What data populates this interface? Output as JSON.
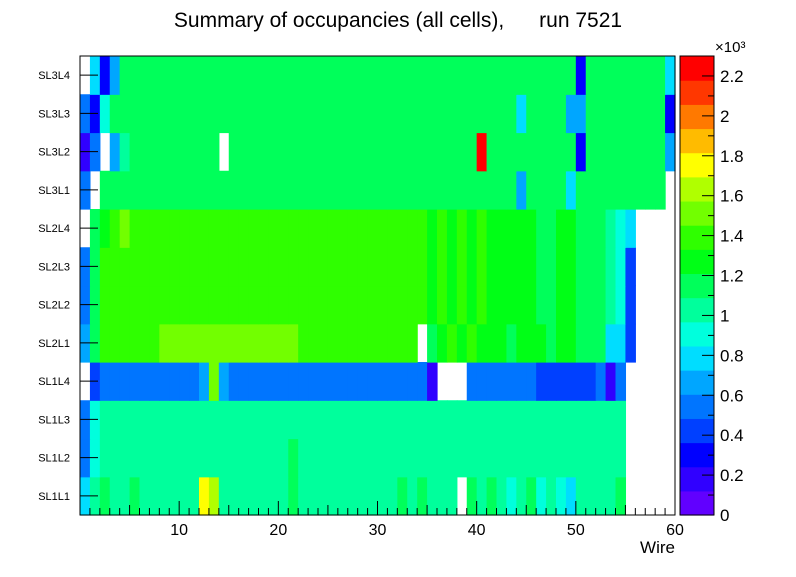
{
  "chart_data": {
    "type": "heatmap",
    "title": "Summary of occupancies (all cells),      run 7521",
    "xlabel": "Wire",
    "ylabel": "",
    "xlim": [
      0,
      60
    ],
    "x_ticks": [
      10,
      20,
      30,
      40,
      50,
      60
    ],
    "rows": [
      "SL1L1",
      "SL1L2",
      "SL1L3",
      "SL1L4",
      "SL2L1",
      "SL2L2",
      "SL2L3",
      "SL2L4",
      "SL3L1",
      "SL3L2",
      "SL3L3",
      "SL3L4"
    ],
    "color_scale": {
      "min": 0,
      "max": 2.3,
      "exponent_label": "×10³",
      "tick_values": [
        0,
        0.2,
        0.4,
        0.6,
        0.8,
        1,
        1.2,
        1.4,
        1.6,
        1.8,
        2,
        2.2
      ],
      "tick_labels": [
        "0",
        "0.2",
        "0.4",
        "0.6",
        "0.8",
        "1",
        "1.2",
        "1.4",
        "1.6",
        "1.8",
        "2",
        "2.2"
      ],
      "palette": [
        "#6100ff",
        "#3000ff",
        "#0000ff",
        "#0040ff",
        "#0075ff",
        "#00a6ff",
        "#00ddff",
        "#00ffdd",
        "#00ff9c",
        "#00ff5a",
        "#00ff16",
        "#2fff00",
        "#72ff00",
        "#b0ff00",
        "#ffff00",
        "#ffbb00",
        "#ff7900",
        "#ff3700",
        "#ff0000"
      ]
    },
    "values_unit": "hits ×10³",
    "values": [
      [
        0.8,
        1.0,
        1.1,
        1.0,
        1.0,
        1.1,
        1.0,
        1.0,
        1.0,
        1.0,
        1.0,
        1.0,
        1.8,
        1.6,
        1.0,
        1.0,
        1.0,
        1.0,
        1.0,
        1.0,
        1.0,
        1.1,
        1.0,
        1.0,
        1.0,
        1.0,
        1.0,
        1.0,
        1.0,
        1.0,
        1.0,
        1.0,
        1.1,
        1.0,
        1.1,
        1.0,
        1.0,
        1.0,
        null,
        1.1,
        1.0,
        1.1,
        1.0,
        0.9,
        1.0,
        1.1,
        0.9,
        1.0,
        0.9,
        0.8,
        1.0,
        1.0,
        1.0,
        1.0,
        1.1,
        null,
        null,
        null,
        null,
        null
      ],
      [
        0.6,
        0.9,
        1.0,
        1.0,
        1.0,
        1.0,
        1.0,
        1.0,
        1.0,
        1.0,
        1.0,
        1.0,
        1.0,
        1.0,
        1.0,
        1.0,
        1.0,
        1.0,
        1.0,
        1.0,
        1.0,
        1.1,
        1.0,
        1.0,
        1.0,
        1.0,
        1.0,
        1.0,
        1.0,
        1.0,
        1.0,
        1.0,
        1.0,
        1.0,
        1.0,
        1.0,
        1.0,
        1.0,
        1.0,
        1.0,
        1.0,
        1.0,
        1.0,
        1.0,
        1.0,
        1.0,
        1.0,
        1.0,
        1.0,
        1.0,
        1.0,
        1.0,
        1.0,
        1.0,
        1.0,
        null,
        null,
        null,
        null,
        null
      ],
      [
        0.6,
        0.9,
        1.0,
        1.0,
        1.0,
        1.0,
        1.0,
        1.0,
        1.0,
        1.0,
        1.0,
        1.0,
        1.0,
        1.0,
        1.0,
        1.0,
        1.0,
        1.0,
        1.0,
        1.0,
        1.0,
        1.0,
        1.0,
        1.0,
        1.0,
        1.0,
        1.0,
        1.0,
        1.0,
        1.0,
        1.0,
        1.0,
        1.0,
        1.0,
        1.0,
        1.0,
        1.0,
        1.0,
        1.0,
        1.0,
        1.0,
        1.0,
        1.0,
        1.0,
        1.0,
        1.0,
        1.0,
        1.0,
        1.0,
        1.0,
        1.0,
        1.0,
        1.0,
        1.0,
        1.0,
        null,
        null,
        null,
        null,
        null
      ],
      [
        null,
        0.4,
        0.5,
        0.5,
        0.5,
        0.5,
        0.5,
        0.5,
        0.6,
        0.6,
        0.5,
        0.6,
        0.7,
        1.5,
        0.7,
        0.6,
        0.5,
        0.5,
        0.6,
        0.5,
        0.6,
        0.5,
        0.5,
        0.5,
        0.5,
        0.5,
        0.5,
        0.5,
        0.5,
        0.5,
        0.5,
        0.5,
        0.6,
        0.6,
        0.6,
        0.2,
        null,
        null,
        null,
        0.5,
        0.5,
        0.5,
        0.5,
        0.5,
        0.5,
        0.6,
        0.4,
        0.4,
        0.4,
        0.4,
        0.4,
        0.4,
        0.5,
        0.2,
        0.5,
        null,
        null,
        null,
        null,
        null
      ],
      [
        0.7,
        1.2,
        1.4,
        1.4,
        1.4,
        1.4,
        1.4,
        1.4,
        1.5,
        1.5,
        1.5,
        1.5,
        1.5,
        1.5,
        1.5,
        1.5,
        1.5,
        1.5,
        1.5,
        1.5,
        1.5,
        1.5,
        1.4,
        1.4,
        1.4,
        1.4,
        1.4,
        1.4,
        1.4,
        1.4,
        1.4,
        1.4,
        1.4,
        1.4,
        null,
        1.2,
        1.3,
        1.4,
        1.3,
        1.4,
        1.3,
        1.3,
        1.3,
        1.2,
        1.3,
        1.3,
        1.3,
        1.2,
        1.3,
        1.3,
        1.2,
        1.1,
        1.1,
        0.8,
        0.8,
        0.4,
        null,
        null,
        null,
        null
      ],
      [
        0.6,
        1.2,
        1.4,
        1.4,
        1.4,
        1.4,
        1.4,
        1.4,
        1.4,
        1.4,
        1.4,
        1.4,
        1.4,
        1.4,
        1.4,
        1.4,
        1.4,
        1.4,
        1.4,
        1.4,
        1.4,
        1.4,
        1.4,
        1.4,
        1.4,
        1.4,
        1.4,
        1.4,
        1.4,
        1.4,
        1.4,
        1.4,
        1.4,
        1.4,
        1.4,
        1.3,
        1.4,
        1.3,
        1.4,
        1.3,
        1.4,
        1.3,
        1.3,
        1.3,
        1.3,
        1.3,
        1.2,
        1.2,
        1.3,
        1.3,
        1.2,
        1.2,
        1.1,
        1.0,
        0.9,
        0.4,
        null,
        null,
        null,
        null
      ],
      [
        0.5,
        1.2,
        1.4,
        1.4,
        1.4,
        1.4,
        1.4,
        1.4,
        1.4,
        1.4,
        1.4,
        1.4,
        1.4,
        1.4,
        1.4,
        1.4,
        1.4,
        1.4,
        1.4,
        1.4,
        1.4,
        1.4,
        1.4,
        1.4,
        1.4,
        1.4,
        1.4,
        1.4,
        1.4,
        1.4,
        1.4,
        1.4,
        1.4,
        1.4,
        1.4,
        1.3,
        1.4,
        1.3,
        1.4,
        1.3,
        1.4,
        1.3,
        1.3,
        1.3,
        1.3,
        1.3,
        1.2,
        1.2,
        1.3,
        1.3,
        1.2,
        1.2,
        1.1,
        1.0,
        0.9,
        0.4,
        null,
        null,
        null,
        null
      ],
      [
        null,
        1.1,
        1.3,
        1.4,
        1.5,
        1.4,
        1.4,
        1.4,
        1.4,
        1.4,
        1.4,
        1.4,
        1.4,
        1.4,
        1.4,
        1.4,
        1.4,
        1.4,
        1.4,
        1.4,
        1.4,
        1.4,
        1.4,
        1.4,
        1.4,
        1.4,
        1.4,
        1.4,
        1.4,
        1.4,
        1.4,
        1.4,
        1.4,
        1.4,
        1.4,
        1.3,
        1.4,
        1.3,
        1.4,
        1.3,
        1.4,
        1.3,
        1.3,
        1.3,
        1.3,
        1.3,
        1.2,
        1.2,
        1.3,
        1.3,
        1.2,
        1.2,
        1.1,
        1.0,
        0.9,
        0.8,
        null,
        null,
        null,
        null
      ],
      [
        0.6,
        null,
        1.1,
        1.1,
        1.1,
        1.1,
        1.1,
        1.1,
        1.1,
        1.1,
        1.1,
        1.1,
        1.2,
        1.2,
        1.2,
        1.2,
        1.2,
        1.2,
        1.2,
        1.2,
        1.2,
        1.2,
        1.2,
        1.2,
        1.2,
        1.2,
        1.2,
        1.2,
        1.2,
        1.2,
        1.2,
        1.2,
        1.2,
        1.2,
        1.2,
        1.2,
        1.2,
        1.2,
        1.2,
        1.2,
        1.2,
        1.2,
        1.2,
        1.2,
        0.7,
        1.2,
        1.2,
        1.2,
        1.2,
        0.8,
        1.2,
        1.2,
        1.2,
        1.2,
        1.2,
        1.2,
        1.2,
        1.2,
        1.2,
        null
      ],
      [
        0.2,
        0.6,
        null,
        0.7,
        1.0,
        1.1,
        1.1,
        1.1,
        1.1,
        1.1,
        1.1,
        1.1,
        1.1,
        1.1,
        null,
        1.1,
        1.1,
        1.1,
        1.1,
        1.1,
        1.1,
        1.1,
        1.1,
        1.1,
        1.1,
        1.1,
        1.1,
        1.1,
        1.1,
        1.1,
        1.1,
        1.1,
        1.1,
        1.1,
        1.1,
        1.1,
        1.1,
        1.1,
        1.1,
        1.1,
        2.25,
        1.1,
        1.1,
        1.1,
        1.1,
        1.1,
        1.1,
        1.1,
        1.1,
        1.1,
        0.3,
        1.1,
        1.1,
        1.1,
        1.1,
        1.1,
        1.1,
        1.1,
        1.1,
        0.7
      ],
      [
        0.5,
        0.3,
        0.9,
        1.1,
        1.1,
        1.1,
        1.1,
        1.1,
        1.1,
        1.1,
        1.1,
        1.1,
        1.1,
        1.1,
        1.1,
        1.1,
        1.1,
        1.1,
        1.1,
        1.1,
        1.1,
        1.1,
        1.1,
        1.1,
        1.1,
        1.1,
        1.1,
        1.1,
        1.1,
        1.1,
        1.1,
        1.1,
        1.1,
        1.1,
        1.1,
        1.1,
        1.1,
        1.1,
        1.1,
        1.1,
        1.1,
        1.1,
        1.1,
        1.1,
        0.8,
        1.1,
        1.1,
        1.1,
        1.1,
        0.7,
        0.7,
        1.1,
        1.1,
        1.1,
        1.1,
        1.1,
        1.1,
        1.1,
        1.1,
        0.3
      ],
      [
        null,
        0.8,
        0.3,
        0.7,
        1.1,
        1.1,
        1.1,
        1.1,
        1.1,
        1.1,
        1.1,
        1.1,
        1.1,
        1.1,
        1.1,
        1.1,
        1.1,
        1.1,
        1.1,
        1.1,
        1.1,
        1.1,
        1.1,
        1.1,
        1.1,
        1.1,
        1.1,
        1.1,
        1.1,
        1.1,
        1.1,
        1.1,
        1.1,
        1.1,
        1.1,
        1.1,
        1.1,
        1.1,
        1.1,
        1.1,
        1.1,
        1.1,
        1.1,
        1.1,
        1.1,
        1.1,
        1.2,
        1.1,
        1.1,
        1.2,
        0.3,
        1.1,
        1.1,
        1.1,
        1.1,
        1.1,
        1.1,
        1.1,
        1.1,
        0.8
      ]
    ]
  }
}
